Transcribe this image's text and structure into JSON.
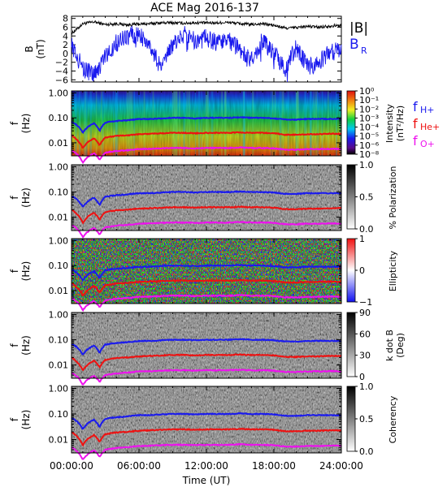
{
  "title": "ACE Mag 2016-137",
  "colors": {
    "btotal": "#000000",
    "br": "#1a1aee",
    "fh": "#1a1aee",
    "fhe": "#ee1111",
    "fo": "#ee11ee",
    "frame": "#000000"
  },
  "time_axis": {
    "label": "Time (UT)",
    "ticks": [
      "00:00:00",
      "06:00:00",
      "12:00:00",
      "18:00:00",
      "24:00:00"
    ],
    "range_hours": [
      0,
      24
    ]
  },
  "freq_axis": {
    "label_top": "f",
    "label_bottom": "(Hz)",
    "ticks": [
      "1.00",
      "0.10",
      "0.01"
    ],
    "range_hz": [
      0.003,
      1.2
    ],
    "scale": "log"
  },
  "panels": [
    {
      "id": "field",
      "ylabel": "B",
      "yunit": "(nT)",
      "legend": [
        "|B|",
        "BR"
      ]
    },
    {
      "id": "intensity",
      "cbar_label_top": "Intensity",
      "cbar_label_bottom": "(nT²/Hz)",
      "cbar_ticks": [
        "10⁰",
        "10⁻¹",
        "10⁻²",
        "10⁻³",
        "10⁻⁴",
        "10⁻⁵",
        "10⁻⁶",
        "10⁻⁸"
      ],
      "legend": [
        "fH+",
        "fHe+",
        "fO+"
      ]
    },
    {
      "id": "polarization",
      "cbar_label": "% Polarization",
      "cbar_ticks": [
        "1.0",
        "0.5",
        "0.0"
      ]
    },
    {
      "id": "ellipticity",
      "cbar_label": "Ellipticity",
      "cbar_ticks": [
        "1",
        "0",
        "−1"
      ]
    },
    {
      "id": "kdotb",
      "cbar_label_top": "k dot B",
      "cbar_label_bottom": "(Deg)",
      "cbar_ticks": [
        "90",
        "60",
        "30",
        "0"
      ]
    },
    {
      "id": "coherency",
      "cbar_label": "Coherency",
      "cbar_ticks": [
        "1.0",
        "0.5",
        "0.0"
      ]
    }
  ],
  "legend_text": {
    "btotal": "|B|",
    "br_main": "B",
    "br_sub": "R",
    "fh_main": "f",
    "fh_sub": "H+",
    "fhe_main": "f",
    "fhe_sub": "He+",
    "fo_main": "f",
    "fo_sub": "O+"
  },
  "chart_data": [
    {
      "type": "line",
      "title": "ACE Mag 2016-137",
      "xlabel": "Time (UT)",
      "ylabel": "B (nT)",
      "ylim": [
        -6.5,
        8.5
      ],
      "yticks": [
        8,
        6,
        4,
        2,
        0,
        -2,
        -4,
        -6
      ],
      "x_hours": [
        0,
        1,
        2,
        3,
        4,
        5,
        6,
        7,
        8,
        9,
        10,
        11,
        12,
        13,
        14,
        15,
        16,
        17,
        18,
        19,
        20,
        21,
        22,
        23,
        24
      ],
      "series": [
        {
          "name": "|B|",
          "values": [
            4.5,
            6.8,
            7.2,
            6.6,
            6.8,
            6.5,
            6.7,
            6.8,
            7.0,
            7.0,
            6.9,
            7.0,
            7.0,
            7.0,
            7.1,
            6.8,
            6.6,
            6.8,
            6.4,
            5.8,
            5.9,
            6.2,
            6.0,
            6.3,
            6.4
          ]
        },
        {
          "name": "BR",
          "values": [
            2.0,
            -3.5,
            -5.0,
            -1.0,
            2.5,
            4.0,
            4.5,
            1.5,
            -3.5,
            2.0,
            4.5,
            3.0,
            3.5,
            2.5,
            3.0,
            1.0,
            -1.5,
            3.0,
            0.0,
            -3.5,
            1.5,
            -3.0,
            -2.0,
            0.5,
            0.5
          ]
        }
      ]
    },
    {
      "type": "heatmap",
      "quantity": "Intensity (nT²/Hz)",
      "xlabel": "Time (UT)",
      "ylabel": "f (Hz)",
      "ylim": [
        0.003,
        1.2
      ],
      "scale_y": "log",
      "colorbar_range": [
        1e-08,
        1
      ]
    },
    {
      "type": "heatmap",
      "quantity": "% Polarization",
      "colorbar_range": [
        0,
        1
      ]
    },
    {
      "type": "heatmap",
      "quantity": "Ellipticity",
      "colorbar_range": [
        -1,
        1
      ]
    },
    {
      "type": "heatmap",
      "quantity": "k dot B (Deg)",
      "colorbar_range": [
        0,
        90
      ]
    },
    {
      "type": "heatmap",
      "quantity": "Coherency",
      "colorbar_range": [
        0,
        1
      ]
    },
    {
      "type": "line",
      "description_of": "gyrofrequency traces overplotted on all spectrogram panels",
      "x_hours": [
        0,
        0.5,
        1,
        1.5,
        2,
        2.5,
        3,
        4,
        5,
        6,
        7,
        8,
        9,
        10,
        11,
        12,
        13,
        14,
        15,
        16,
        17,
        18,
        19,
        20,
        21,
        22,
        23,
        24
      ],
      "series": [
        {
          "name": "fH+",
          "values": [
            0.07,
            0.05,
            0.025,
            0.045,
            0.06,
            0.03,
            0.065,
            0.075,
            0.08,
            0.09,
            0.09,
            0.095,
            0.1,
            0.1,
            0.095,
            0.1,
            0.1,
            0.1,
            0.105,
            0.1,
            0.1,
            0.095,
            0.085,
            0.085,
            0.09,
            0.09,
            0.09,
            0.09
          ]
        },
        {
          "name": "fHe+",
          "values": [
            0.02,
            0.013,
            0.006,
            0.011,
            0.015,
            0.008,
            0.016,
            0.019,
            0.02,
            0.022,
            0.023,
            0.024,
            0.025,
            0.025,
            0.024,
            0.025,
            0.025,
            0.025,
            0.026,
            0.025,
            0.025,
            0.024,
            0.021,
            0.021,
            0.022,
            0.022,
            0.023,
            0.023
          ]
        },
        {
          "name": "fO+",
          "values": [
            0.005,
            0.0035,
            0.0016,
            0.0028,
            0.0038,
            0.0021,
            0.004,
            0.0047,
            0.005,
            0.0056,
            0.0057,
            0.006,
            0.0062,
            0.0062,
            0.006,
            0.0062,
            0.0062,
            0.0062,
            0.0065,
            0.0062,
            0.0062,
            0.006,
            0.0053,
            0.0053,
            0.0056,
            0.0056,
            0.0057,
            0.0057
          ]
        }
      ]
    }
  ]
}
